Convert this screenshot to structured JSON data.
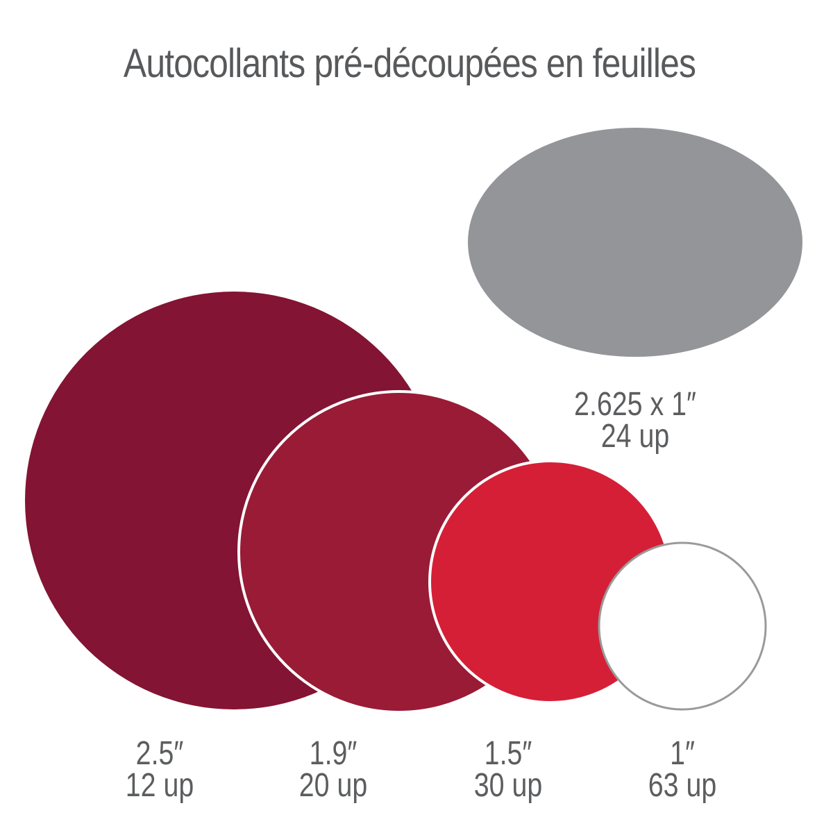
{
  "title": "Autocollants pré-découpées en feuilles",
  "stickers": [
    {
      "id": "circle-2-5",
      "size": "2.5″",
      "count": "12 up",
      "color": "#831433"
    },
    {
      "id": "circle-1-9",
      "size": "1.9″",
      "count": "20 up",
      "color": "#991b36"
    },
    {
      "id": "circle-1-5",
      "size": "1.5″",
      "count": "30 up",
      "color": "#d51f36"
    },
    {
      "id": "circle-1",
      "size": "1″",
      "count": "63 up",
      "color": "#ffffff",
      "outline": "#9a9a9a"
    },
    {
      "id": "oval",
      "size": "2.625 x 1″",
      "count": "24 up",
      "color": "#939598"
    }
  ]
}
